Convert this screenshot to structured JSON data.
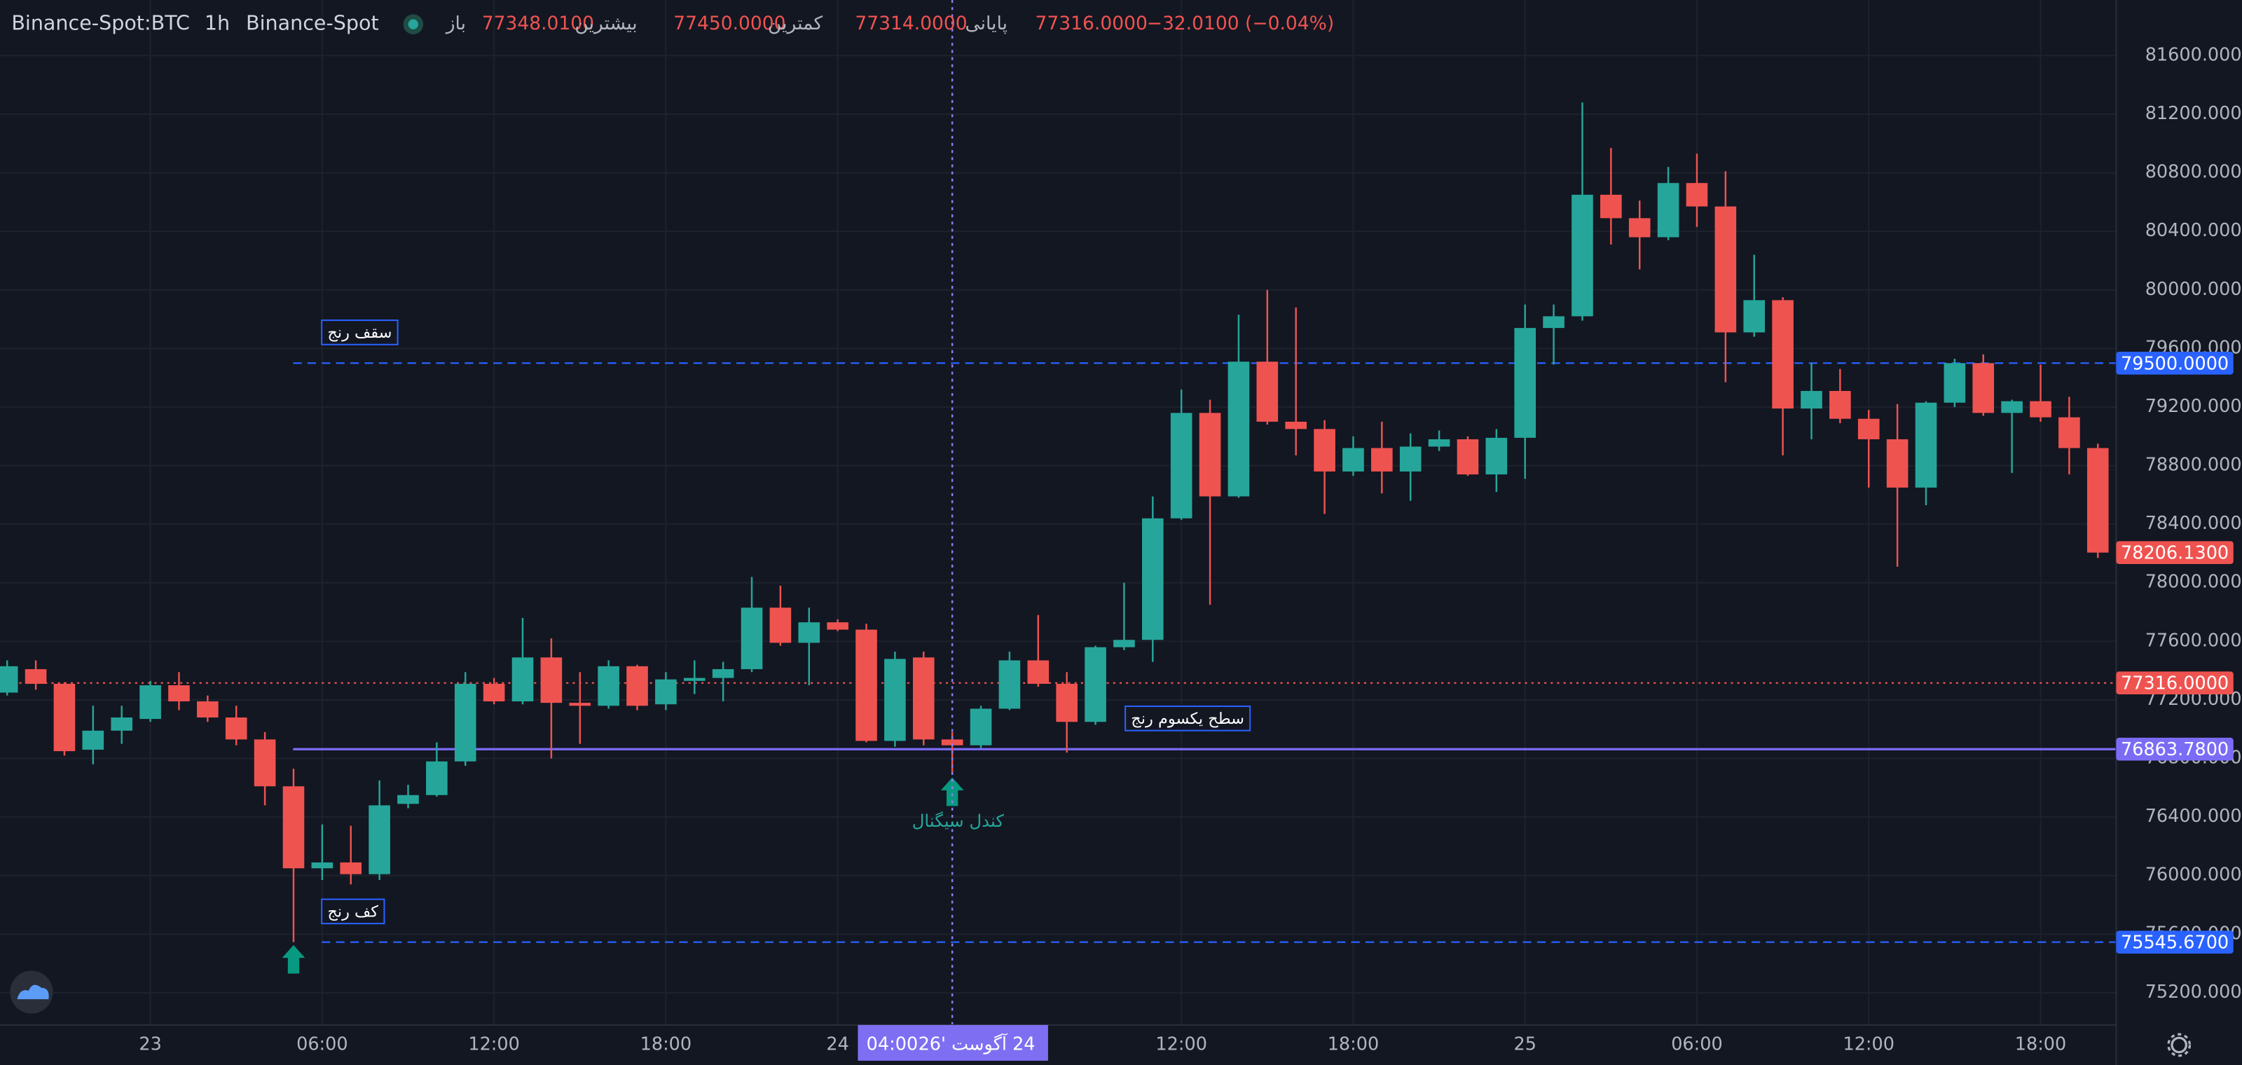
{
  "header": {
    "symbol": "Binance-Spot:BTC",
    "interval": "1h",
    "exchange": "Binance-Spot",
    "open_label": "باز",
    "open": "77348.0100",
    "high_label": "بیشترین",
    "high": "77450.0000",
    "low_label": "کمترین",
    "low": "77314.0000",
    "close_label": "پایانی",
    "close": "77316.0000",
    "change": "−32.0100 (−0.04%)"
  },
  "chart_data": {
    "type": "candlestick",
    "categories": [
      null,
      null,
      null,
      null,
      null,
      "23",
      null,
      null,
      null,
      null,
      null,
      "06:00",
      null,
      null,
      null,
      null,
      null,
      "12:00",
      null,
      null,
      null,
      null,
      null,
      "18:00",
      null,
      null,
      null,
      null,
      null,
      "24",
      null,
      null,
      null,
      null,
      null,
      null,
      null,
      null,
      null,
      null,
      null,
      "12:00",
      null,
      null,
      null,
      null,
      null,
      "18:00",
      null,
      null,
      null,
      null,
      null,
      "25",
      null,
      null,
      null,
      null,
      null,
      "06:00",
      null,
      null,
      null,
      null,
      null,
      "12:00",
      null,
      null,
      null,
      null,
      null,
      "18:00",
      null,
      null
    ],
    "open": [
      77250,
      77410,
      77310,
      76860,
      76990,
      77070,
      77300,
      77190,
      77080,
      76930,
      76610,
      76050,
      76090,
      76010,
      76490,
      76550,
      76780,
      77310,
      77190,
      77490,
      77180,
      77160,
      77430,
      77170,
      77330,
      77350,
      77410,
      77830,
      77590,
      77730,
      77680,
      76920,
      77490,
      76930,
      76890,
      77140,
      77470,
      77310,
      77050,
      77560,
      77610,
      78440,
      79160,
      78590,
      79510,
      79100,
      79050,
      78760,
      78920,
      78760,
      78930,
      78980,
      78740,
      78990,
      79740,
      79820,
      80650,
      80490,
      80360,
      80730,
      80570,
      79710,
      79930,
      79190,
      79310,
      79120,
      78980,
      78650,
      79230,
      79500,
      79160,
      79240,
      79130,
      78920
    ],
    "high": [
      77470,
      77470,
      77320,
      77160,
      77160,
      77330,
      77390,
      77230,
      77160,
      76980,
      76730,
      76350,
      76340,
      76650,
      76620,
      76910,
      77390,
      77350,
      77760,
      77620,
      77390,
      77470,
      77440,
      77390,
      77470,
      77460,
      78040,
      77980,
      77830,
      77750,
      77720,
      77530,
      77530,
      76980,
      77160,
      77530,
      77780,
      77390,
      77570,
      78000,
      78590,
      79320,
      79250,
      79830,
      80000,
      79880,
      79110,
      79000,
      79100,
      79020,
      79040,
      79000,
      79050,
      79900,
      79900,
      81280,
      80970,
      80610,
      80840,
      80930,
      80810,
      80240,
      79950,
      79500,
      79460,
      79180,
      79220,
      79240,
      79530,
      79560,
      79250,
      79490,
      79270,
      78950
    ],
    "low": [
      77230,
      77270,
      76820,
      76760,
      76900,
      77050,
      77130,
      77050,
      76890,
      76480,
      75545.67,
      75970,
      75940,
      75970,
      76460,
      76540,
      76750,
      77170,
      77170,
      76800,
      76900,
      77140,
      77130,
      77130,
      77240,
      77190,
      77390,
      77570,
      77300,
      77670,
      76910,
      76880,
      76890,
      76690,
      76870,
      77130,
      77290,
      76840,
      77030,
      77540,
      77460,
      78430,
      77850,
      78580,
      79080,
      78870,
      78470,
      78730,
      78610,
      78560,
      78900,
      78730,
      78620,
      78710,
      79490,
      79790,
      80310,
      80140,
      80340,
      80430,
      79370,
      79680,
      78870,
      78980,
      79090,
      78650,
      78110,
      78530,
      79200,
      79140,
      78750,
      79100,
      78740,
      78170
    ],
    "close": [
      77430,
      77310,
      76850,
      76990,
      77080,
      77300,
      77190,
      77080,
      76930,
      76610,
      76050,
      76090,
      76010,
      76480,
      76550,
      76780,
      77310,
      77190,
      77490,
      77180,
      77160,
      77430,
      77160,
      77340,
      77350,
      77410,
      77830,
      77590,
      77730,
      77680,
      76920,
      77480,
      76930,
      76890,
      77140,
      77470,
      77310,
      77050,
      77560,
      77610,
      78440,
      79160,
      78590,
      79510,
      79100,
      79050,
      78760,
      78920,
      78760,
      78930,
      78980,
      78740,
      78990,
      79740,
      79820,
      80650,
      80490,
      80360,
      80730,
      80570,
      79710,
      79930,
      79190,
      79310,
      79120,
      78980,
      78650,
      79230,
      79500,
      79160,
      79240,
      79130,
      78920,
      78206.13
    ],
    "up_color": "#26a69a",
    "down_color": "#ef5350",
    "ylim": [
      74980,
      81980
    ],
    "yticks": [
      {
        "value": 81600,
        "label": "81600.0000"
      },
      {
        "value": 81200,
        "label": "81200.0000"
      },
      {
        "value": 80800,
        "label": "80800.0000"
      },
      {
        "value": 80400,
        "label": "80400.0000"
      },
      {
        "value": 80000,
        "label": "80000.0000"
      },
      {
        "value": 79600,
        "label": "79600.0000"
      },
      {
        "value": 79200,
        "label": "79200.0000"
      },
      {
        "value": 78800,
        "label": "78800.0000"
      },
      {
        "value": 78400,
        "label": "78400.0000"
      },
      {
        "value": 78000,
        "label": "78000.0000"
      },
      {
        "value": 77600,
        "label": "77600.0000"
      },
      {
        "value": 77200,
        "label": "77200.0000"
      },
      {
        "value": 76800,
        "label": "76800.0000"
      },
      {
        "value": 76400,
        "label": "76400.0000"
      },
      {
        "value": 76000,
        "label": "76000.0000"
      },
      {
        "value": 75600,
        "label": "75600.0000"
      },
      {
        "value": 75200,
        "label": "75200.0000"
      }
    ],
    "grid": true,
    "price_lines": [
      {
        "value": 79500,
        "label": "79500.0000",
        "color": "#2962ff",
        "style": "dashed"
      },
      {
        "value": 77316,
        "label": "77316.0000",
        "color": "#ef5350",
        "style": "dotted"
      },
      {
        "value": 76863.78,
        "label": "76863.7800",
        "color": "#7b6cf6",
        "style": "solid"
      },
      {
        "value": 75545.67,
        "label": "75545.6700",
        "color": "#2962ff",
        "style": "dashed"
      }
    ],
    "last_price": {
      "value": 78206.13,
      "label": "78206.1300"
    },
    "annotations": [
      {
        "text": "سقف رنج"
      },
      {
        "text": "کف رنج"
      },
      {
        "text": "سطح یکسوم رنج"
      },
      {
        "text": "کندل سیگنال"
      }
    ],
    "crosshair": {
      "date": "24 آگوست '26",
      "time": "04:00"
    }
  }
}
